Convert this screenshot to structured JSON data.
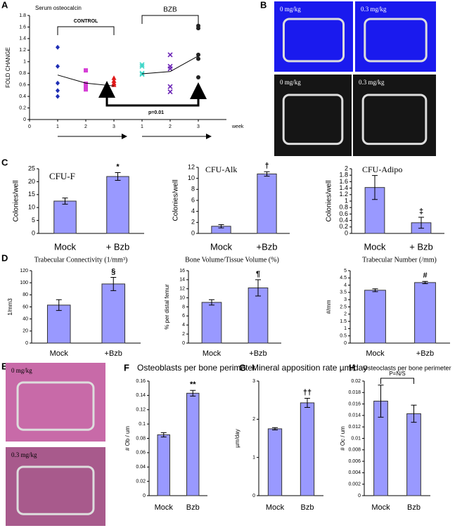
{
  "chart_data": [
    {
      "type": "scatter",
      "panel": "A",
      "title": "Serum osteocalcin",
      "y_label": "FOLD CHANGE",
      "x_label": "week",
      "groups": [
        "CONTROL",
        "BZB"
      ],
      "annotation": "p=0.01",
      "xlim": [
        0,
        7
      ],
      "xticks": [
        0,
        1,
        2,
        3,
        {
          "value": 4,
          "label": "1"
        },
        {
          "value": 5,
          "label": "2"
        },
        {
          "value": 6,
          "label": "3"
        }
      ],
      "ylim": [
        0,
        1.8
      ],
      "yticks": [
        0,
        0.2,
        0.4,
        0.6,
        0.8,
        1,
        1.2,
        1.4,
        1.6,
        1.8
      ],
      "series": [
        {
          "marker": "diamond",
          "color": "#1f2fb5",
          "x": [
            1,
            1,
            1,
            1,
            1
          ],
          "values": [
            1.25,
            0.92,
            0.63,
            0.5,
            0.4
          ]
        },
        {
          "marker": "square",
          "color": "#d63fd6",
          "x": [
            2,
            2,
            2,
            2
          ],
          "values": [
            0.85,
            0.62,
            0.57,
            0.52
          ]
        },
        {
          "marker": "triangle",
          "color": "#e01818",
          "x": [
            3,
            3,
            3,
            3
          ],
          "values": [
            0.72,
            0.67,
            0.63,
            0.6
          ]
        },
        {
          "marker": "x",
          "color": "#3fd6c8",
          "x": [
            4,
            4,
            4,
            4
          ],
          "values": [
            0.95,
            0.92,
            0.8,
            0.78
          ]
        },
        {
          "marker": "x",
          "color": "#6a22b5",
          "x": [
            5,
            5,
            5,
            5,
            5
          ],
          "values": [
            1.12,
            0.92,
            0.88,
            0.57,
            0.48
          ]
        },
        {
          "marker": "circle",
          "color": "#222222",
          "x": [
            6,
            6,
            6,
            6,
            6
          ],
          "values": [
            1.62,
            1.58,
            1.12,
            1.05,
            0.73
          ]
        },
        {
          "marker": "line",
          "color": "#000000",
          "x": [
            1,
            2,
            3
          ],
          "values": [
            0.77,
            0.63,
            0.58
          ]
        },
        {
          "marker": "line",
          "color": "#000000",
          "x": [
            4,
            5,
            6
          ],
          "values": [
            0.79,
            0.83,
            1.1
          ]
        }
      ]
    },
    {
      "type": "image",
      "panel": "B",
      "images": [
        {
          "label": "0 mg/kg",
          "color": "#1a1aee"
        },
        {
          "label": "0.3 mg/kg",
          "color": "#1a1aee"
        },
        {
          "label": "0 mg/kg",
          "color": "#151515"
        },
        {
          "label": "0.3 mg/kg",
          "color": "#151515"
        }
      ]
    },
    {
      "type": "bar",
      "panel": "C",
      "title": "CFU-F",
      "y_label": "Colonies/well",
      "categories": [
        "Mock",
        "+ Bzb"
      ],
      "values": [
        12.5,
        22
      ],
      "errors": [
        1.2,
        1.5
      ],
      "sig": [
        null,
        "*"
      ],
      "color": "#9999ff",
      "ylim": [
        0,
        25
      ],
      "yticks": [
        0,
        5,
        10,
        15,
        20,
        25
      ]
    },
    {
      "type": "bar",
      "title": "CFU-Alk",
      "y_label": "Colonies/well",
      "categories": [
        "Mock",
        "+Bzb"
      ],
      "values": [
        1.3,
        10.8
      ],
      "errors": [
        0.3,
        0.4
      ],
      "sig": [
        null,
        "†"
      ],
      "color": "#9999ff",
      "ylim": [
        0,
        12
      ],
      "yticks": [
        0,
        2,
        4,
        6,
        8,
        10,
        12
      ]
    },
    {
      "type": "bar",
      "title": "CFU-Adipo",
      "y_label": "Colonies/well",
      "categories": [
        "Mock",
        "+ Bzb"
      ],
      "values": [
        1.42,
        0.33
      ],
      "errors": [
        0.37,
        0.17
      ],
      "sig": [
        null,
        "‡"
      ],
      "color": "#9999ff",
      "ylim": [
        0,
        2
      ],
      "yticks": [
        0,
        0.2,
        0.4,
        0.6,
        0.8,
        1,
        1.2,
        1.4,
        1.6,
        1.8,
        2
      ]
    },
    {
      "type": "bar",
      "panel": "D",
      "title": "Trabecular Connectivity (1/mm³)",
      "y_label": "1/mm3",
      "categories": [
        "Mock",
        "+Bzb"
      ],
      "values": [
        63,
        98
      ],
      "errors": [
        9,
        11
      ],
      "sig": [
        null,
        "§"
      ],
      "color": "#9999ff",
      "ylim": [
        0,
        120
      ],
      "yticks": [
        0,
        20,
        40,
        60,
        80,
        100,
        120
      ]
    },
    {
      "type": "bar",
      "title": "Bone Volume/Tissue Volume (%)",
      "y_label": "% per distal femur",
      "categories": [
        "Mock",
        "+Bzb"
      ],
      "values": [
        9,
        12.2
      ],
      "errors": [
        0.6,
        1.8
      ],
      "sig": [
        null,
        "¶"
      ],
      "color": "#9999ff",
      "ylim": [
        0,
        16
      ],
      "yticks": [
        0,
        2,
        4,
        6,
        8,
        10,
        12,
        14,
        16
      ]
    },
    {
      "type": "bar",
      "title": "Trabecular Number (/mm)",
      "y_label": "#/mm",
      "categories": [
        "Mock",
        "+Bzb"
      ],
      "values": [
        3.65,
        4.18
      ],
      "errors": [
        0.1,
        0.08
      ],
      "sig": [
        null,
        "#"
      ],
      "color": "#9999ff",
      "ylim": [
        0,
        5
      ],
      "yticks": [
        0,
        0.5,
        1,
        1.5,
        2,
        2.5,
        3,
        3.5,
        4,
        4.5,
        5
      ]
    },
    {
      "type": "image",
      "panel": "E",
      "images": [
        {
          "label": "0 mg/kg",
          "color": "#c86aa8"
        },
        {
          "label": "0.3 mg/kg",
          "color": "#a85a8c"
        }
      ]
    },
    {
      "type": "bar",
      "panel": "F",
      "title": "Osteoblasts per bone perimeter",
      "y_label": "# Ob / um",
      "categories": [
        "Mock",
        "Bzb"
      ],
      "values": [
        0.085,
        0.143
      ],
      "errors": [
        0.003,
        0.004
      ],
      "sig": [
        null,
        "**"
      ],
      "color": "#9999ff",
      "ylim": [
        0,
        0.16
      ],
      "yticks": [
        0,
        0.02,
        0.04,
        0.06,
        0.08,
        0.1,
        0.12,
        0.14,
        0.16
      ]
    },
    {
      "type": "bar",
      "panel": "G",
      "title": "Mineral apposition rate µm/day",
      "y_label": "µm/day",
      "categories": [
        "Mock",
        "Bzb"
      ],
      "values": [
        1.75,
        2.43
      ],
      "errors": [
        0.03,
        0.12
      ],
      "sig": [
        null,
        "††"
      ],
      "color": "#9999ff",
      "ylim": [
        0,
        3
      ],
      "yticks": [
        0,
        1,
        2,
        3
      ]
    },
    {
      "type": "bar",
      "panel": "H",
      "title": "Osteoclasts per bone perimeter",
      "y_label": "# Oc / um",
      "categories": [
        "Mock",
        "Bzb"
      ],
      "values": [
        0.0165,
        0.0143
      ],
      "errors": [
        0.0028,
        0.0015
      ],
      "annotation": "P=N/S",
      "color": "#9999ff",
      "ylim": [
        0,
        0.02
      ],
      "yticks": [
        0,
        0.002,
        0.004,
        0.006,
        0.008,
        0.01,
        0.012,
        0.014,
        0.016,
        0.018,
        0.02
      ]
    }
  ]
}
